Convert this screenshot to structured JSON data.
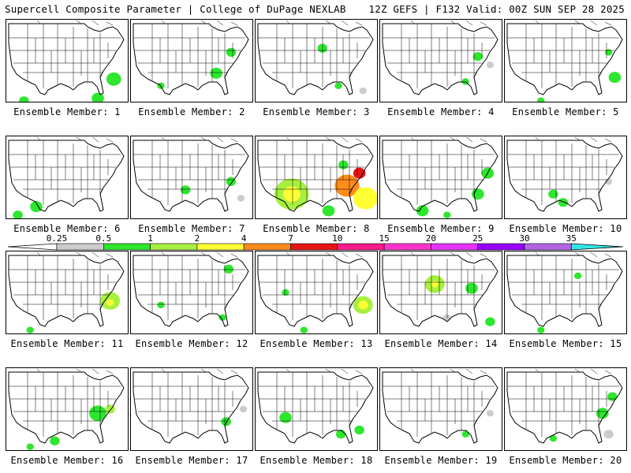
{
  "header": {
    "title": "Supercell Composite Parameter | College of DuPage NEXLAB",
    "run": "12Z GEFS | F132 Valid: 00Z SUN SEP 28 2025"
  },
  "member_label_prefix": "Ensemble Member:",
  "members": [
    {
      "number": "1",
      "blobs": [
        [
          0.88,
          0.72,
          0.06,
          "#2ee62e"
        ],
        [
          0.75,
          0.95,
          0.05,
          "#2ee62e"
        ],
        [
          0.15,
          0.98,
          0.04,
          "#2ee62e"
        ]
      ]
    },
    {
      "number": "2",
      "blobs": [
        [
          0.7,
          0.65,
          0.05,
          "#2ee62e"
        ],
        [
          0.82,
          0.4,
          0.04,
          "#2ee62e"
        ],
        [
          0.25,
          0.8,
          0.03,
          "#2ee62e"
        ]
      ]
    },
    {
      "number": "3",
      "blobs": [
        [
          0.55,
          0.35,
          0.04,
          "#2ee62e"
        ],
        [
          0.68,
          0.8,
          0.03,
          "#2ee62e"
        ],
        [
          0.88,
          0.86,
          0.03,
          "#cccccc"
        ]
      ]
    },
    {
      "number": "4",
      "blobs": [
        [
          0.8,
          0.45,
          0.04,
          "#2ee62e"
        ],
        [
          0.7,
          0.75,
          0.03,
          "#2ee62e"
        ],
        [
          0.9,
          0.55,
          0.03,
          "#cccccc"
        ]
      ]
    },
    {
      "number": "5",
      "blobs": [
        [
          0.9,
          0.7,
          0.05,
          "#2ee62e"
        ],
        [
          0.85,
          0.4,
          0.03,
          "#2ee62e"
        ],
        [
          0.3,
          0.98,
          0.03,
          "#2ee62e"
        ]
      ]
    },
    {
      "number": "6",
      "blobs": [
        [
          0.25,
          0.85,
          0.05,
          "#2ee62e"
        ],
        [
          0.1,
          0.95,
          0.04,
          "#2ee62e"
        ]
      ]
    },
    {
      "number": "7",
      "blobs": [
        [
          0.45,
          0.65,
          0.04,
          "#2ee62e"
        ],
        [
          0.82,
          0.55,
          0.04,
          "#2ee62e"
        ],
        [
          0.9,
          0.75,
          0.03,
          "#cccccc"
        ]
      ]
    },
    {
      "number": "8",
      "blobs": [
        [
          0.3,
          0.7,
          0.14,
          "#a8f040"
        ],
        [
          0.3,
          0.7,
          0.07,
          "#ffff33"
        ],
        [
          0.75,
          0.6,
          0.1,
          "#ff8c1a"
        ],
        [
          0.85,
          0.45,
          0.05,
          "#e61414"
        ],
        [
          0.9,
          0.75,
          0.1,
          "#ffff33"
        ],
        [
          0.6,
          0.9,
          0.05,
          "#2ee62e"
        ],
        [
          0.72,
          0.35,
          0.04,
          "#2ee62e"
        ]
      ]
    },
    {
      "number": "9",
      "blobs": [
        [
          0.35,
          0.9,
          0.05,
          "#2ee62e"
        ],
        [
          0.8,
          0.7,
          0.05,
          "#2ee62e"
        ],
        [
          0.88,
          0.45,
          0.05,
          "#2ee62e"
        ],
        [
          0.55,
          0.95,
          0.03,
          "#2ee62e"
        ]
      ]
    },
    {
      "number": "10",
      "blobs": [
        [
          0.4,
          0.7,
          0.04,
          "#2ee62e"
        ],
        [
          0.48,
          0.8,
          0.04,
          "#2ee62e"
        ],
        [
          0.85,
          0.55,
          0.03,
          "#cccccc"
        ]
      ]
    },
    {
      "number": "11",
      "blobs": [
        [
          0.85,
          0.6,
          0.08,
          "#a8f040"
        ],
        [
          0.85,
          0.62,
          0.03,
          "#ffff33"
        ],
        [
          0.2,
          0.95,
          0.03,
          "#2ee62e"
        ]
      ]
    },
    {
      "number": "12",
      "blobs": [
        [
          0.8,
          0.22,
          0.04,
          "#2ee62e"
        ],
        [
          0.25,
          0.65,
          0.03,
          "#2ee62e"
        ],
        [
          0.75,
          0.8,
          0.03,
          "#2ee62e"
        ]
      ]
    },
    {
      "number": "13",
      "blobs": [
        [
          0.88,
          0.65,
          0.08,
          "#a8f040"
        ],
        [
          0.88,
          0.65,
          0.04,
          "#ffff33"
        ],
        [
          0.25,
          0.5,
          0.03,
          "#2ee62e"
        ],
        [
          0.4,
          0.95,
          0.03,
          "#2ee62e"
        ]
      ]
    },
    {
      "number": "14",
      "blobs": [
        [
          0.45,
          0.4,
          0.08,
          "#a8f040"
        ],
        [
          0.45,
          0.4,
          0.03,
          "#ffff33"
        ],
        [
          0.75,
          0.45,
          0.05,
          "#2ee62e"
        ],
        [
          0.9,
          0.85,
          0.04,
          "#2ee62e"
        ],
        [
          0.55,
          0.8,
          0.03,
          "#cccccc"
        ]
      ]
    },
    {
      "number": "15",
      "blobs": [
        [
          0.6,
          0.3,
          0.03,
          "#2ee62e"
        ],
        [
          0.3,
          0.95,
          0.03,
          "#2ee62e"
        ]
      ]
    },
    {
      "number": "16",
      "blobs": [
        [
          0.75,
          0.55,
          0.07,
          "#2ee62e"
        ],
        [
          0.85,
          0.5,
          0.04,
          "#a8f040"
        ],
        [
          0.4,
          0.88,
          0.04,
          "#2ee62e"
        ],
        [
          0.2,
          0.95,
          0.03,
          "#2ee62e"
        ]
      ]
    },
    {
      "number": "17",
      "blobs": [
        [
          0.78,
          0.65,
          0.04,
          "#2ee62e"
        ],
        [
          0.92,
          0.5,
          0.03,
          "#cccccc"
        ]
      ]
    },
    {
      "number": "18",
      "blobs": [
        [
          0.25,
          0.6,
          0.05,
          "#2ee62e"
        ],
        [
          0.7,
          0.8,
          0.04,
          "#2ee62e"
        ],
        [
          0.85,
          0.75,
          0.04,
          "#2ee62e"
        ]
      ]
    },
    {
      "number": "19",
      "blobs": [
        [
          0.7,
          0.8,
          0.03,
          "#2ee62e"
        ],
        [
          0.9,
          0.55,
          0.03,
          "#cccccc"
        ]
      ]
    },
    {
      "number": "20",
      "blobs": [
        [
          0.8,
          0.55,
          0.05,
          "#2ee62e"
        ],
        [
          0.88,
          0.35,
          0.04,
          "#2ee62e"
        ],
        [
          0.4,
          0.85,
          0.03,
          "#2ee62e"
        ],
        [
          0.85,
          0.8,
          0.04,
          "#cccccc"
        ]
      ]
    }
  ],
  "colorbar": {
    "labels": [
      "0.25",
      "0.5",
      "1",
      "2",
      "4",
      "7",
      "10",
      "15",
      "20",
      "25",
      "30",
      "35"
    ],
    "colors": [
      "#cccccc",
      "#2ee62e",
      "#a8f040",
      "#ffff33",
      "#ff8c1a",
      "#e61414",
      "#ff1a8c",
      "#ff33cc",
      "#e633ff",
      "#9900ff",
      "#b266e6",
      "#33e6e6"
    ]
  }
}
